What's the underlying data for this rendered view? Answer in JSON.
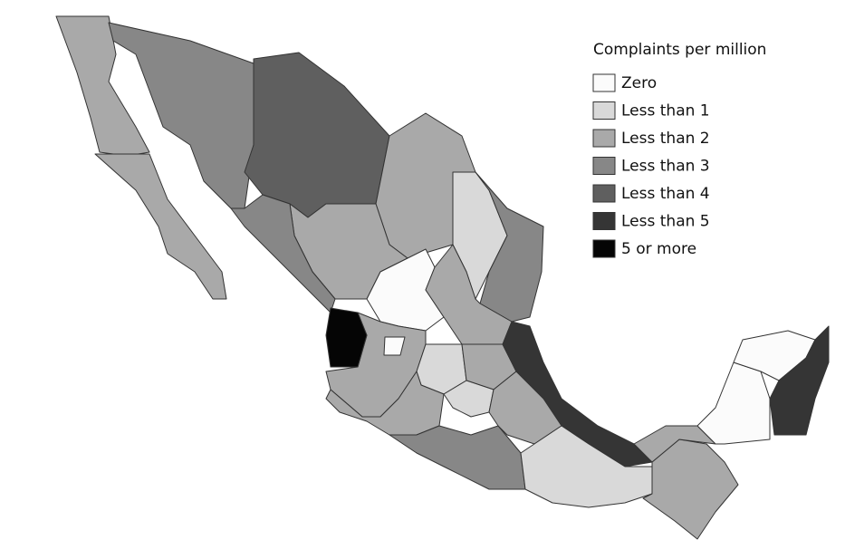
{
  "legend": {
    "title": "Complaints per million",
    "items": [
      {
        "label": "Zero",
        "color": "#fbfbfb"
      },
      {
        "label": "Less than 1",
        "color": "#d9d9d9"
      },
      {
        "label": "Less than 2",
        "color": "#a9a9a9"
      },
      {
        "label": "Less than 3",
        "color": "#878787"
      },
      {
        "label": "Less than 4",
        "color": "#5f5f5f"
      },
      {
        "label": "Less than 5",
        "color": "#353535"
      },
      {
        "label": "5 or more",
        "color": "#050505"
      }
    ]
  }
}
